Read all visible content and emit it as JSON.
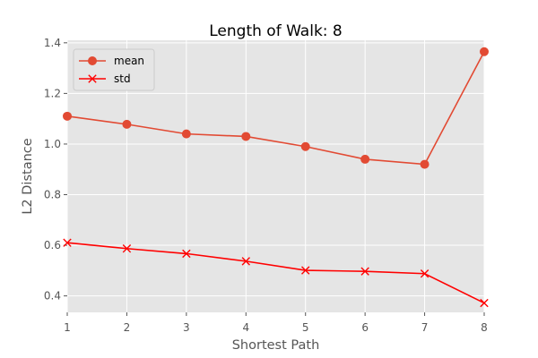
{
  "chart_data": {
    "type": "line",
    "title": "Length of Walk: 8",
    "xlabel": "Shortest Path",
    "ylabel": "L2 Distance",
    "x": [
      1,
      2,
      3,
      4,
      5,
      6,
      7,
      8
    ],
    "xlim": [
      1,
      8
    ],
    "ylim": [
      0.335,
      1.41
    ],
    "xticks": [
      "1",
      "2",
      "3",
      "4",
      "5",
      "6",
      "7",
      "8"
    ],
    "yticks": [
      0.4,
      0.6,
      0.8,
      1.0,
      1.2,
      1.4
    ],
    "ytick_labels": [
      "0.4",
      "0.6",
      "0.8",
      "1.0",
      "1.2",
      "1.4"
    ],
    "grid": true,
    "legend_position": "top-left",
    "series": [
      {
        "name": "mean",
        "marker": "circle",
        "color": "#E24A33",
        "values": [
          1.11,
          1.078,
          1.04,
          1.03,
          0.99,
          0.94,
          0.92,
          1.365
        ]
      },
      {
        "name": "std",
        "marker": "x",
        "color": "#ff0000",
        "values": [
          0.61,
          0.587,
          0.567,
          0.537,
          0.501,
          0.497,
          0.488,
          0.372
        ]
      }
    ]
  }
}
